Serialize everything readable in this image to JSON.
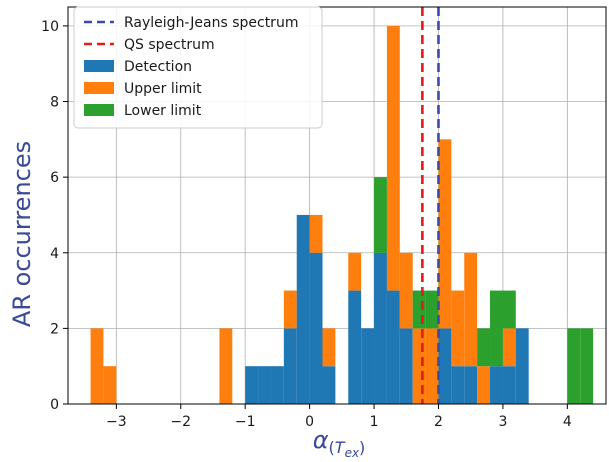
{
  "chart_data": {
    "type": "bar",
    "title": "",
    "xlabel": "α(Tex)",
    "ylabel": "AR occurrences",
    "xlim": [
      -3.75,
      4.6
    ],
    "ylim": [
      0,
      10.5
    ],
    "grid": true,
    "legend_position": "top-left",
    "bin_width": 0.2,
    "x_ticks": [
      -3,
      -2,
      -1,
      0,
      1,
      2,
      3,
      4
    ],
    "x_tick_labels": [
      "−3",
      "−2",
      "−1",
      "0",
      "1",
      "2",
      "3",
      "4"
    ],
    "y_ticks": [
      0,
      2,
      4,
      6,
      8,
      10
    ],
    "y_tick_labels": [
      "0",
      "2",
      "4",
      "6",
      "8",
      "10"
    ],
    "vlines": [
      {
        "name": "Rayleigh-Jeans spectrum",
        "x": 2.0,
        "color": "#3b4ba8"
      },
      {
        "name": "QS spectrum",
        "x": 1.75,
        "color": "#e41a1c"
      }
    ],
    "bin_starts": [
      -3.4,
      -3.2,
      -1.4,
      -1.0,
      -0.8,
      -0.6,
      -0.4,
      -0.2,
      0.0,
      0.2,
      0.6,
      0.8,
      1.0,
      1.2,
      1.4,
      1.6,
      1.8,
      2.0,
      2.2,
      2.4,
      2.6,
      2.8,
      3.0,
      3.2,
      4.0,
      4.2
    ],
    "series": [
      {
        "name": "Detection",
        "color": "#1f77b4",
        "values": [
          0,
          0,
          0,
          1,
          1,
          1,
          2,
          5,
          4,
          1,
          3,
          2,
          4,
          3,
          2,
          0,
          0,
          2,
          1,
          1,
          0,
          1,
          1,
          2,
          0,
          0
        ]
      },
      {
        "name": "Upper limit",
        "color": "#ff7f0e",
        "values": [
          2,
          1,
          2,
          0,
          0,
          0,
          1,
          0,
          1,
          1,
          1,
          0,
          0,
          7,
          2,
          2,
          2,
          5,
          2,
          3,
          1,
          0,
          1,
          0,
          0,
          0
        ]
      },
      {
        "name": "Lower limit",
        "color": "#2ca02c",
        "values": [
          0,
          0,
          0,
          0,
          0,
          0,
          0,
          0,
          0,
          0,
          0,
          0,
          2,
          0,
          0,
          1,
          1,
          0,
          0,
          0,
          1,
          2,
          1,
          0,
          2,
          2
        ]
      }
    ]
  }
}
